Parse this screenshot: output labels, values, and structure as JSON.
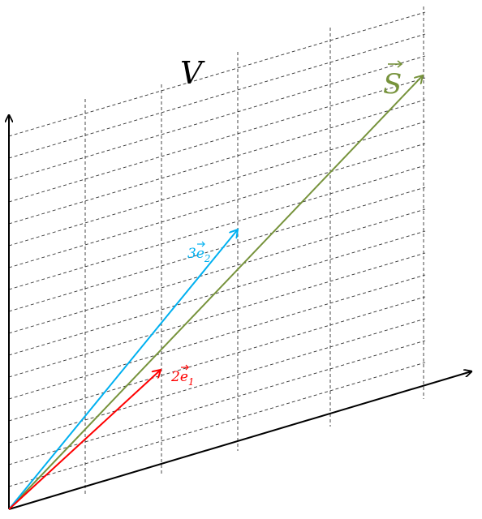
{
  "diagram": {
    "space_label": "V",
    "vectors": [
      {
        "name": "s",
        "label_main": "S",
        "label_sub": "",
        "color": "#77933C",
        "has_arrow_hat": true
      },
      {
        "name": "3e2",
        "label_main": "3e",
        "label_sub": "2",
        "color": "#00B0F0",
        "has_arrow_hat": true
      },
      {
        "name": "2e1",
        "label_main": "2e",
        "label_sub": "1",
        "color": "#FF0000",
        "has_arrow_hat": true
      }
    ],
    "colors": {
      "axes": "#000000",
      "grid": "#333333",
      "vector_s": "#77933C",
      "vector_3e2": "#00B0F0",
      "vector_2e1": "#FF0000"
    }
  }
}
